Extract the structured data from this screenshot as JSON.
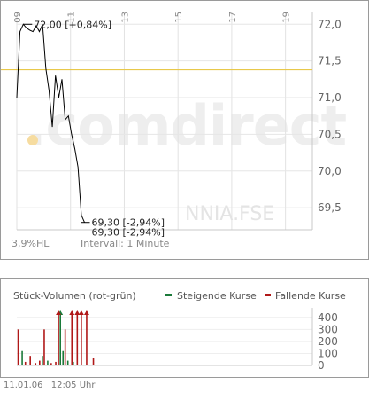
{
  "price_chart": {
    "watermark": ".comdirect",
    "symbol_watermark": "NNIA.FSE",
    "bottom_left_label": "3,9%HL",
    "interval_label": "Intervall: 1 Minute",
    "high_label": "72,00 [+0,84%]",
    "low_label_1": "69,30 [-2,94%]",
    "low_label_2": "69,30 [-2,94%]",
    "x_ticks": [
      "09",
      "11",
      "13",
      "15",
      "17",
      "19"
    ],
    "y_ticks": [
      "72,0",
      "71,5",
      "71,0",
      "70,5",
      "70,0",
      "69,5"
    ]
  },
  "volume_chart": {
    "title": "Stück-Volumen (rot-grün)",
    "legend_up": "Steigende Kurse",
    "legend_down": "Fallende Kurse",
    "y_ticks": [
      "400",
      "300",
      "200",
      "100",
      "0"
    ]
  },
  "footer": {
    "date": "11.01.06",
    "time": "12:05 Uhr"
  },
  "colors": {
    "price_line": "#000000",
    "reference_line": "#e8c84a",
    "up": "#1b7a3a",
    "down": "#b01818",
    "watermark": "#eeeeee",
    "watermark_accent": "#f6dca0"
  },
  "chart_data": [
    {
      "type": "line",
      "title": "",
      "xlabel": "",
      "ylabel": "",
      "x_tick_labels": [
        "09",
        "11",
        "13",
        "15",
        "17",
        "19"
      ],
      "xlim": [
        9,
        20
      ],
      "ylim": [
        69.2,
        72.1
      ],
      "reference_line": 71.38,
      "series": [
        {
          "x": [
            9.0,
            9.12,
            9.24,
            9.36,
            9.48,
            9.6,
            9.72,
            9.84,
            9.96,
            10.08,
            10.2,
            10.32,
            10.44,
            10.56,
            10.68,
            10.8,
            10.92,
            11.04,
            11.16,
            11.28,
            11.4,
            11.52
          ],
          "y": [
            71.0,
            71.9,
            72.0,
            71.95,
            71.92,
            71.9,
            71.98,
            71.9,
            72.0,
            71.4,
            71.1,
            70.6,
            71.3,
            71.0,
            71.25,
            70.7,
            70.75,
            70.5,
            70.3,
            70.05,
            69.4,
            69.3
          ]
        }
      ]
    },
    {
      "type": "bar",
      "title": "Stück-Volumen (rot-grün)",
      "xlim": [
        9,
        20
      ],
      "ylim": [
        0,
        450
      ],
      "series": [
        {
          "name": "Steigende Kurse",
          "x": [
            9.2,
            9.95,
            10.15,
            10.62,
            10.72,
            10.9,
            11.1
          ],
          "values": [
            120,
            80,
            40,
            450,
            120,
            40,
            30
          ]
        },
        {
          "name": "Fallende Kurse",
          "x": [
            9.05,
            9.32,
            9.5,
            9.7,
            9.85,
            10.02,
            10.28,
            10.45,
            10.55,
            10.8,
            11.05,
            11.25,
            11.4,
            11.6,
            11.85
          ],
          "values": [
            300,
            30,
            80,
            20,
            40,
            300,
            20,
            30,
            450,
            300,
            450,
            450,
            450,
            450,
            60
          ]
        }
      ]
    }
  ]
}
